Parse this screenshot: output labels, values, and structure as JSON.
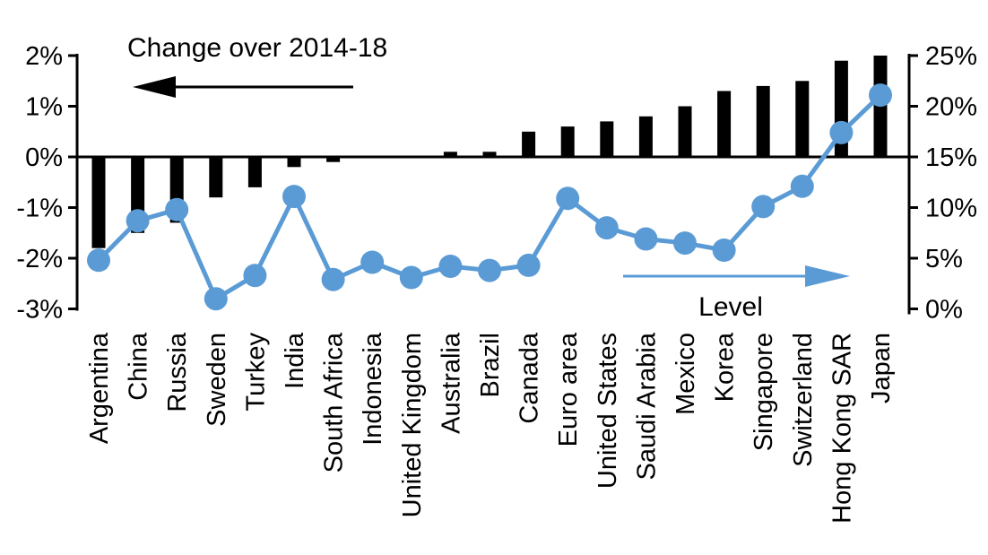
{
  "chart_data": {
    "type": "combo-bar-line",
    "title": "",
    "categories": [
      "Argentina",
      "China",
      "Russia",
      "Sweden",
      "Turkey",
      "India",
      "South Africa",
      "Indonesia",
      "United Kingdom",
      "Australia",
      "Brazil",
      "Canada",
      "Euro area",
      "United States",
      "Saudi Arabia",
      "Mexico",
      "Korea",
      "Singapore",
      "Switzerland",
      "Hong Kong SAR",
      "Japan"
    ],
    "series": [
      {
        "name": "Change over 2014-18",
        "type": "bar",
        "axis": "left",
        "color": "#000000",
        "values": [
          -1.8,
          -1.5,
          -1.3,
          -0.8,
          -0.6,
          -0.2,
          -0.1,
          0.0,
          0.0,
          0.1,
          0.1,
          0.5,
          0.6,
          0.7,
          0.8,
          1.0,
          1.3,
          1.4,
          1.5,
          1.9,
          2.0
        ]
      },
      {
        "name": "Level",
        "type": "line",
        "axis": "right",
        "color": "#5B9BD5",
        "values": [
          4.8,
          8.7,
          9.8,
          1.0,
          3.3,
          11.1,
          2.9,
          4.6,
          3.1,
          4.2,
          3.8,
          4.3,
          10.9,
          8.0,
          6.9,
          6.5,
          5.8,
          10.1,
          12.1,
          17.4,
          21.1
        ]
      }
    ],
    "left_axis": {
      "tick_labels": [
        "2%",
        "1%",
        "0%",
        "-1%",
        "-2%",
        "-3%"
      ],
      "tick_values": [
        2,
        1,
        0,
        -1,
        -2,
        -3
      ],
      "min": -3,
      "max": 2
    },
    "right_axis": {
      "tick_labels": [
        "25%",
        "20%",
        "15%",
        "10%",
        "5%",
        "0%"
      ],
      "tick_values": [
        25,
        20,
        15,
        10,
        5,
        0
      ],
      "min": 0,
      "max": 25
    },
    "annotations": {
      "bar_series_label": "Change over 2014-18",
      "line_series_label": "Level"
    },
    "grid": false,
    "legend_position": "in-plot annotations with arrows"
  },
  "colors": {
    "bar": "#000000",
    "line": "#5B9BD5",
    "axis": "#000000",
    "background": "#ffffff"
  }
}
